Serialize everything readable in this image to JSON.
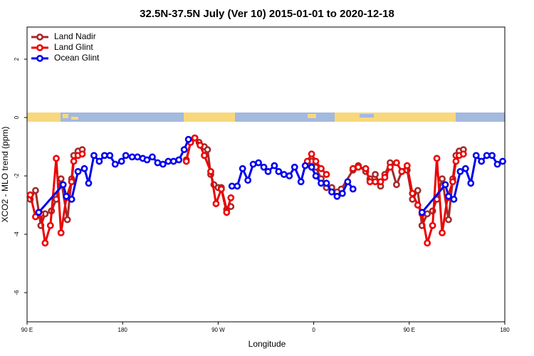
{
  "chart_data": {
    "type": "line",
    "title": "32.5N-37.5N July (Ver 10)   2015-01-01 to 2020-12-18",
    "x_label": "Longitude",
    "y_label": "XCO2 - MLO trend (ppm)",
    "xlim": [
      90,
      540
    ],
    "xticks": [
      {
        "value": 90,
        "label": "90 E"
      },
      180,
      {
        "value": 270,
        "label": "90 W"
      },
      {
        "value": 360,
        "label": "0"
      },
      {
        "value": 450,
        "label": "90 E"
      },
      {
        "value": 540,
        "label": "180"
      }
    ],
    "ylim": [
      -7,
      3.1
    ],
    "yticks": [
      -6,
      -4,
      -2,
      0,
      2
    ],
    "legend": "top-left",
    "series": [
      {
        "name": "Land Nadir",
        "color": "#a52a2a",
        "x": [
          93,
          98,
          103,
          107,
          113,
          117.5,
          122,
          128,
          132,
          134,
          138,
          142,
          null,
          240,
          244,
          248,
          252,
          257,
          260,
          263,
          266,
          270,
          273,
          278,
          282,
          null,
          354,
          358,
          362,
          367,
          372,
          377,
          382,
          386,
          397,
          402,
          409,
          413,
          418,
          423,
          427,
          432,
          438,
          443,
          448,
          453,
          458,
          462,
          467,
          472,
          476,
          481,
          487,
          491,
          494,
          497,
          501
        ],
        "values": [
          -2.8,
          -2.5,
          -3.7,
          -3.3,
          -3.2,
          -2.8,
          -2.1,
          -3.5,
          -2.1,
          -1.3,
          -1.15,
          -1.1,
          null,
          -1.45,
          -0.85,
          -0.7,
          -0.85,
          -1.0,
          -1.1,
          -1.95,
          -2.3,
          -2.4,
          -2.4,
          -3.15,
          -3.05,
          null,
          -1.6,
          -1.5,
          -1.7,
          -2.1,
          -2.4,
          -2.4,
          -2.55,
          -2.45,
          -1.8,
          -1.65,
          -1.85,
          -2.1,
          -1.95,
          -2.35,
          -1.95,
          -1.55,
          -2.3,
          -1.85,
          -1.8,
          -2.8,
          -2.5,
          -3.7,
          -3.3,
          -3.2,
          -2.8,
          -2.1,
          -3.5,
          -2.1,
          -1.3,
          -1.15,
          -1.1
        ]
      },
      {
        "name": "Land Glint",
        "color": "#ee0000",
        "x": [
          93,
          98,
          103,
          107,
          112,
          117.5,
          122,
          127,
          132,
          134,
          138,
          142,
          null,
          240,
          244,
          248,
          253,
          257,
          263,
          268,
          273,
          278,
          282,
          null,
          354,
          358,
          362,
          367,
          372,
          null,
          397,
          402,
          409,
          413,
          418,
          423,
          427,
          432,
          438,
          443,
          448,
          453,
          458,
          462,
          467,
          472,
          476,
          481,
          486,
          491,
          494,
          497,
          501
        ],
        "values": [
          -2.65,
          -3.4,
          -3.3,
          -4.3,
          -3.7,
          -1.4,
          -3.95,
          -2.75,
          -2.2,
          -1.5,
          -1.3,
          -1.25,
          null,
          -1.5,
          -0.85,
          -0.7,
          -0.95,
          -1.3,
          -1.85,
          -2.95,
          -2.45,
          -3.25,
          -2.75,
          null,
          -1.5,
          -1.25,
          -1.5,
          -1.75,
          -1.95,
          null,
          -1.75,
          -1.7,
          -1.75,
          -2.2,
          -2.2,
          -2.2,
          -2.05,
          -1.7,
          -1.55,
          -1.85,
          -1.65,
          -2.6,
          -3.0,
          -3.3,
          -4.3,
          -3.7,
          -1.4,
          -3.95,
          -2.75,
          -2.2,
          -1.5,
          -1.3,
          -1.25
        ]
      },
      {
        "name": "Ocean Glint",
        "color": "#0000ee",
        "x": [
          101,
          124,
          127,
          132,
          138,
          144,
          148,
          153,
          158,
          163,
          168,
          173,
          179,
          183,
          189,
          194,
          199,
          203,
          208,
          213,
          218,
          223,
          228,
          233,
          238,
          242,
          null,
          283,
          288,
          293,
          298,
          303,
          308,
          313,
          317,
          323,
          327,
          332,
          337,
          342,
          348,
          352,
          358,
          362,
          367,
          372,
          377,
          382,
          387,
          392,
          397,
          null,
          462,
          484,
          487,
          492,
          498,
          503,
          508,
          513,
          518,
          523,
          528,
          533,
          538
        ],
        "values": [
          -3.25,
          -2.3,
          -2.7,
          -2.8,
          -1.85,
          -1.75,
          -2.25,
          -1.3,
          -1.5,
          -1.3,
          -1.3,
          -1.6,
          -1.5,
          -1.3,
          -1.35,
          -1.35,
          -1.4,
          -1.45,
          -1.35,
          -1.55,
          -1.6,
          -1.5,
          -1.5,
          -1.45,
          -1.1,
          -0.75,
          null,
          -2.35,
          -2.35,
          -1.75,
          -2.15,
          -1.6,
          -1.55,
          -1.7,
          -1.85,
          -1.65,
          -1.85,
          -1.95,
          -2.0,
          -1.7,
          -2.2,
          -1.65,
          -1.7,
          -2.0,
          -2.25,
          -2.25,
          -2.55,
          -2.7,
          -2.6,
          -2.2,
          -2.45,
          null,
          -3.25,
          -2.3,
          -2.7,
          -2.8,
          -1.85,
          -1.75,
          -2.25,
          -1.3,
          -1.5,
          -1.3,
          -1.3,
          -1.6,
          -1.5
        ]
      }
    ]
  }
}
